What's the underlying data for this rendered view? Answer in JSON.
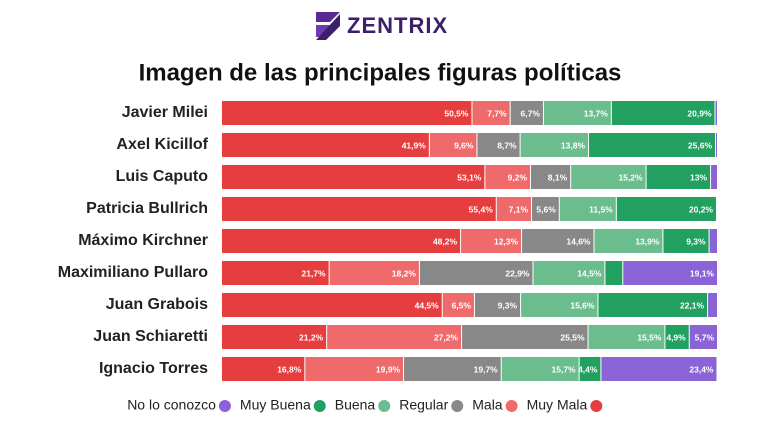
{
  "logo": "ZENTRIX",
  "chart_data": {
    "type": "stacked-barh",
    "title": "Imagen de las principales figuras políticas",
    "categories": [
      "Javier Milei",
      "Axel Kicillof",
      "Luis Caputo",
      "Patricia Bullrich",
      "Máximo Kirchner",
      "Maximiliano Pullaro",
      "Juan Grabois",
      "Juan Schiaretti",
      "Ignacio Torres"
    ],
    "xlim": [
      0,
      100
    ],
    "series": [
      {
        "name": "Muy Mala",
        "color": "#e63e3e",
        "values": [
          50.5,
          41.9,
          53.1,
          55.4,
          48.2,
          21.7,
          44.5,
          21.2,
          16.8
        ],
        "value_labels": [
          "50,5%",
          "41,9%",
          "53,1%",
          "55,4%",
          "48,2%",
          "21,7%",
          "44,5%",
          "21,2%",
          "16,8%"
        ]
      },
      {
        "name": "Mala",
        "color": "#ef6b6b",
        "values": [
          7.7,
          9.6,
          9.2,
          7.1,
          12.3,
          18.2,
          6.5,
          27.2,
          19.9
        ],
        "value_labels": [
          "7,7%",
          "9,6%",
          "9,2%",
          "7,1%",
          "12,3%",
          "18,2%",
          "6,5%",
          "27,2%",
          "19,9%"
        ]
      },
      {
        "name": "Regular",
        "color": "#888888",
        "values": [
          6.7,
          8.7,
          8.1,
          5.6,
          14.6,
          22.9,
          9.3,
          25.5,
          19.7
        ],
        "value_labels": [
          "6,7%",
          "8,7%",
          "8,1%",
          "5,6%",
          "14,6%",
          "22,9%",
          "9,3%",
          "25,5%",
          "19,7%"
        ]
      },
      {
        "name": "Buena",
        "color": "#6cbd8e",
        "values": [
          13.7,
          13.8,
          15.2,
          11.5,
          13.9,
          14.5,
          15.6,
          15.5,
          15.7
        ],
        "value_labels": [
          "13,7%",
          "13,8%",
          "15,2%",
          "11,5%",
          "13,9%",
          "14,5%",
          "15,6%",
          "15,5%",
          "15,7%"
        ]
      },
      {
        "name": "Muy Buena",
        "color": "#22a060",
        "values": [
          20.9,
          25.6,
          13,
          20.2,
          9.3,
          3.6,
          22.1,
          4.9,
          4.4
        ],
        "value_labels": [
          "20,9%",
          "25,6%",
          "13%",
          "20,2%",
          "9,3%",
          null,
          "22,1%",
          "4,9%",
          "4,4%"
        ]
      },
      {
        "name": "No lo conozco",
        "color": "#8a63d6",
        "values": [
          0.5,
          0.4,
          1.4,
          0.2,
          1.7,
          19.1,
          2.0,
          5.7,
          23.4
        ],
        "value_labels": [
          null,
          null,
          null,
          null,
          null,
          "19,1%",
          null,
          "5,7%",
          "23,4%"
        ]
      }
    ]
  }
}
